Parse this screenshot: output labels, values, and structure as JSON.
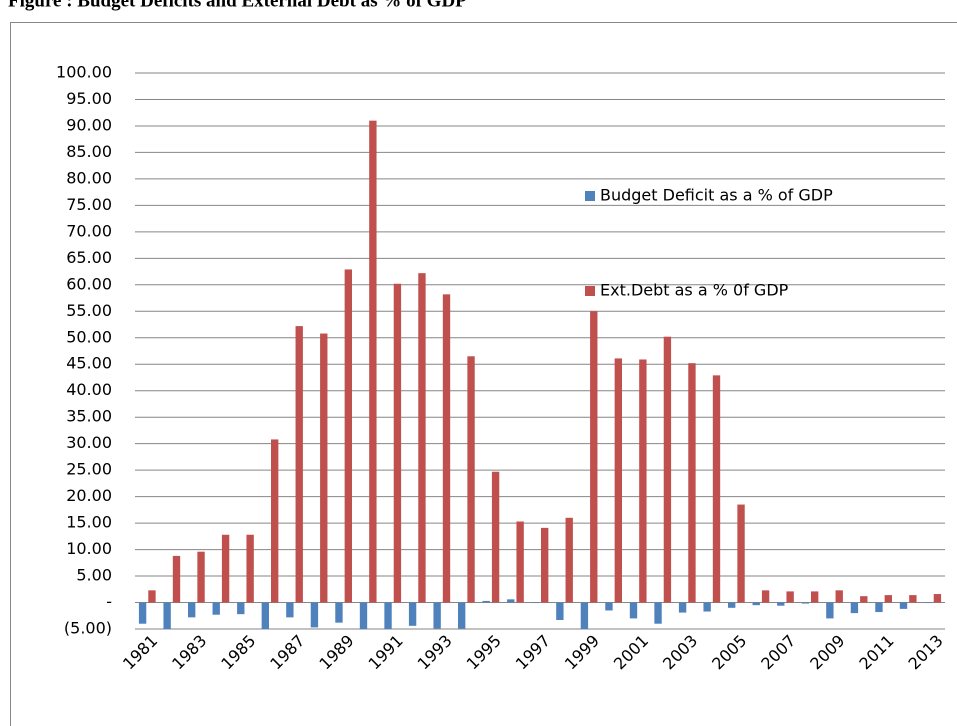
{
  "chart_data": {
    "type": "bar",
    "title": "Figure : Budget Deficits and External Debt as % of GDP",
    "categories": [
      "1981",
      null,
      "1983",
      null,
      "1985",
      null,
      "1987",
      null,
      "1989",
      null,
      "1991",
      null,
      "1993",
      null,
      "1995",
      null,
      "1997",
      null,
      "1999",
      null,
      "2001",
      null,
      "2003",
      null,
      "2005",
      null,
      "2007",
      null,
      "2009",
      null,
      "2011",
      null,
      "2013"
    ],
    "series": [
      {
        "name": "Budget Deficit as a % of GDP",
        "color": "#4f81bd",
        "values": [
          -4.0,
          -5.0,
          -2.8,
          -2.3,
          -2.2,
          -5.0,
          -2.8,
          -4.7,
          -3.8,
          -5.0,
          -5.0,
          -4.4,
          -4.9,
          -4.9,
          0.3,
          0.6,
          -0.1,
          -3.3,
          -5.0,
          -1.5,
          -3.0,
          -4.0,
          -1.9,
          -1.7,
          -1.0,
          -0.5,
          -0.6,
          -0.2,
          -3.0,
          -2.0,
          -1.8,
          -1.2,
          -0.1
        ]
      },
      {
        "name": "Ext.Debt as a % 0f GDP",
        "color": "#c0504d",
        "values": [
          2.3,
          8.8,
          9.6,
          12.8,
          12.8,
          30.8,
          52.2,
          50.8,
          62.9,
          91.0,
          60.2,
          62.2,
          58.2,
          46.5,
          24.7,
          15.3,
          14.1,
          16.0,
          55.0,
          46.1,
          45.9,
          50.2,
          45.2,
          42.9,
          18.5,
          2.3,
          2.1,
          2.1,
          2.3,
          1.2,
          1.4,
          1.4,
          1.6
        ]
      }
    ],
    "ylim": [
      -5,
      100
    ],
    "yticks": [
      {
        "value": -5,
        "label": "(5.00)"
      },
      {
        "value": 0,
        "label": "-"
      },
      {
        "value": 5,
        "label": "5.00"
      },
      {
        "value": 10,
        "label": "10.00"
      },
      {
        "value": 15,
        "label": "15.00"
      },
      {
        "value": 20,
        "label": "20.00"
      },
      {
        "value": 25,
        "label": "25.00"
      },
      {
        "value": 30,
        "label": "30.00"
      },
      {
        "value": 35,
        "label": "35.00"
      },
      {
        "value": 40,
        "label": "40.00"
      },
      {
        "value": 45,
        "label": "45.00"
      },
      {
        "value": 50,
        "label": "50.00"
      },
      {
        "value": 55,
        "label": "55.00"
      },
      {
        "value": 60,
        "label": "60.00"
      },
      {
        "value": 65,
        "label": "65.00"
      },
      {
        "value": 70,
        "label": "70.00"
      },
      {
        "value": 75,
        "label": "75.00"
      },
      {
        "value": 80,
        "label": "80.00"
      },
      {
        "value": 85,
        "label": "85.00"
      },
      {
        "value": 90,
        "label": "90.00"
      },
      {
        "value": 95,
        "label": "95.00"
      },
      {
        "value": 100,
        "label": "100.00"
      }
    ],
    "grid": true
  }
}
